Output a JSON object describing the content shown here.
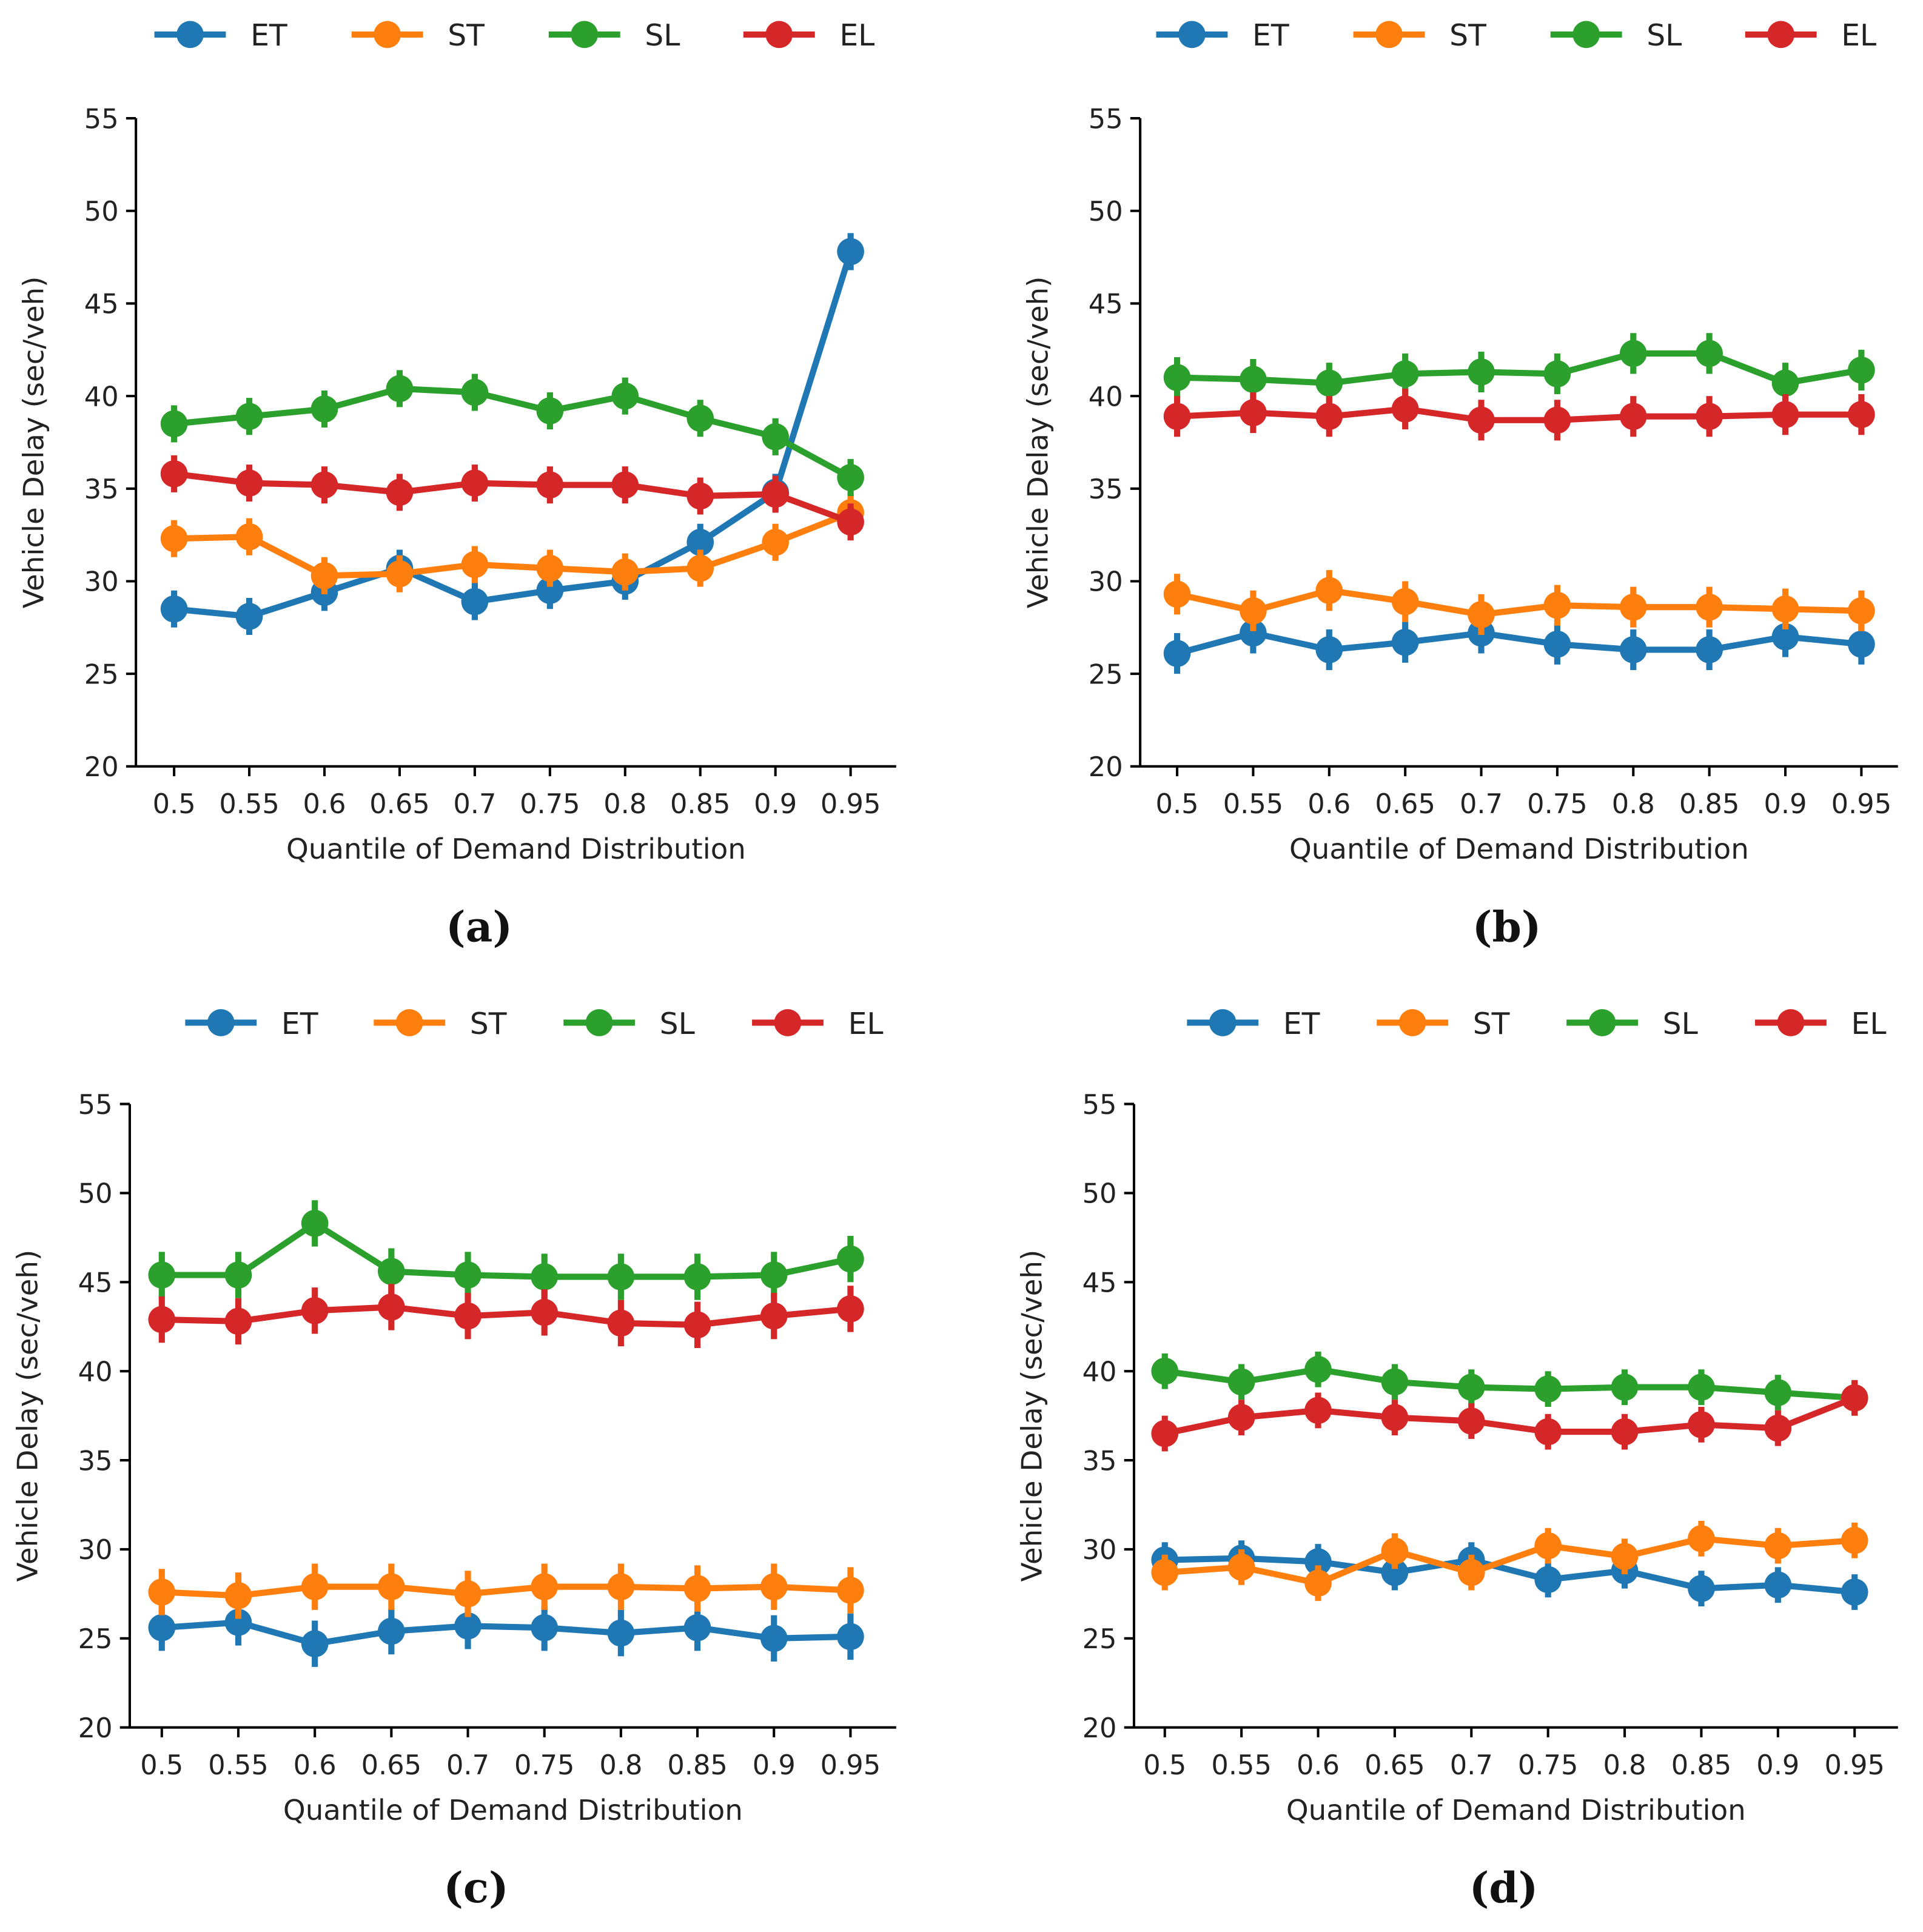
{
  "chart_data": [
    {
      "type": "line",
      "caption": "(a)",
      "xlabel": "Quantile of Demand Distribution",
      "ylabel": "Vehicle Delay (sec/veh)",
      "categories": [
        "0.5",
        "0.55",
        "0.6",
        "0.65",
        "0.7",
        "0.75",
        "0.8",
        "0.85",
        "0.9",
        "0.95"
      ],
      "ylim": [
        20,
        55
      ],
      "yticks": [
        20,
        25,
        30,
        35,
        40,
        45,
        50,
        55
      ],
      "legend": "top",
      "error_bar": 1.0,
      "series": [
        {
          "name": "ET",
          "color": "#1f77b4",
          "values": [
            28.5,
            28.1,
            29.4,
            30.7,
            28.9,
            29.5,
            30.0,
            32.1,
            34.8,
            47.8
          ]
        },
        {
          "name": "ST",
          "color": "#ff7f0e",
          "values": [
            32.3,
            32.4,
            30.3,
            30.4,
            30.9,
            30.7,
            30.5,
            30.7,
            32.1,
            33.7
          ]
        },
        {
          "name": "SL",
          "color": "#2ca02c",
          "values": [
            38.5,
            38.9,
            39.3,
            40.4,
            40.2,
            39.2,
            40.0,
            38.8,
            37.8,
            35.6
          ]
        },
        {
          "name": "EL",
          "color": "#d62728",
          "values": [
            35.8,
            35.3,
            35.2,
            34.8,
            35.3,
            35.2,
            35.2,
            34.6,
            34.7,
            33.2
          ]
        }
      ]
    },
    {
      "type": "line",
      "caption": "(b)",
      "xlabel": "Quantile of Demand Distribution",
      "ylabel": "Vehicle Delay (sec/veh)",
      "categories": [
        "0.5",
        "0.55",
        "0.6",
        "0.65",
        "0.7",
        "0.75",
        "0.8",
        "0.85",
        "0.9",
        "0.95"
      ],
      "ylim": [
        20,
        55
      ],
      "yticks": [
        20,
        25,
        30,
        35,
        40,
        45,
        50,
        55
      ],
      "legend": "top",
      "error_bar": 1.1,
      "series": [
        {
          "name": "ET",
          "color": "#1f77b4",
          "values": [
            26.1,
            27.2,
            26.3,
            26.7,
            27.2,
            26.6,
            26.3,
            26.3,
            27.0,
            26.6
          ]
        },
        {
          "name": "ST",
          "color": "#ff7f0e",
          "values": [
            29.3,
            28.4,
            29.5,
            28.9,
            28.2,
            28.7,
            28.6,
            28.6,
            28.5,
            28.4
          ]
        },
        {
          "name": "SL",
          "color": "#2ca02c",
          "values": [
            41.0,
            40.9,
            40.7,
            41.2,
            41.3,
            41.2,
            42.3,
            42.3,
            40.7,
            41.4
          ]
        },
        {
          "name": "EL",
          "color": "#d62728",
          "values": [
            38.9,
            39.1,
            38.9,
            39.3,
            38.7,
            38.7,
            38.9,
            38.9,
            39.0,
            39.0
          ]
        }
      ]
    },
    {
      "type": "line",
      "caption": "(c)",
      "xlabel": "Quantile of Demand Distribution",
      "ylabel": "Vehicle Delay (sec/veh)",
      "categories": [
        "0.5",
        "0.55",
        "0.6",
        "0.65",
        "0.7",
        "0.75",
        "0.8",
        "0.85",
        "0.9",
        "0.95"
      ],
      "ylim": [
        20,
        55
      ],
      "yticks": [
        20,
        25,
        30,
        35,
        40,
        45,
        50,
        55
      ],
      "legend": "top",
      "error_bar": 1.3,
      "series": [
        {
          "name": "ET",
          "color": "#1f77b4",
          "values": [
            25.6,
            25.9,
            24.7,
            25.4,
            25.7,
            25.6,
            25.3,
            25.6,
            25.0,
            25.1
          ]
        },
        {
          "name": "ST",
          "color": "#ff7f0e",
          "values": [
            27.6,
            27.4,
            27.9,
            27.9,
            27.5,
            27.9,
            27.9,
            27.8,
            27.9,
            27.7
          ]
        },
        {
          "name": "SL",
          "color": "#2ca02c",
          "values": [
            45.4,
            45.4,
            48.3,
            45.6,
            45.4,
            45.3,
            45.3,
            45.3,
            45.4,
            46.3
          ]
        },
        {
          "name": "EL",
          "color": "#d62728",
          "values": [
            42.9,
            42.8,
            43.4,
            43.6,
            43.1,
            43.3,
            42.7,
            42.6,
            43.1,
            43.5
          ]
        }
      ]
    },
    {
      "type": "line",
      "caption": "(d)",
      "xlabel": "Quantile of Demand Distribution",
      "ylabel": "Vehicle Delay (sec/veh)",
      "categories": [
        "0.5",
        "0.55",
        "0.6",
        "0.65",
        "0.7",
        "0.75",
        "0.8",
        "0.85",
        "0.9",
        "0.95"
      ],
      "ylim": [
        20,
        55
      ],
      "yticks": [
        20,
        25,
        30,
        35,
        40,
        45,
        50,
        55
      ],
      "legend": "top",
      "error_bar": 1.0,
      "series": [
        {
          "name": "ET",
          "color": "#1f77b4",
          "values": [
            29.4,
            29.5,
            29.3,
            28.7,
            29.4,
            28.3,
            28.8,
            27.8,
            28.0,
            27.6
          ]
        },
        {
          "name": "ST",
          "color": "#ff7f0e",
          "values": [
            28.7,
            29.0,
            28.1,
            29.9,
            28.7,
            30.2,
            29.6,
            30.6,
            30.2,
            30.5
          ]
        },
        {
          "name": "SL",
          "color": "#2ca02c",
          "values": [
            40.0,
            39.4,
            40.1,
            39.4,
            39.1,
            39.0,
            39.1,
            39.1,
            38.8,
            38.5
          ]
        },
        {
          "name": "EL",
          "color": "#d62728",
          "values": [
            36.5,
            37.4,
            37.8,
            37.4,
            37.2,
            36.6,
            36.6,
            37.0,
            36.8,
            38.5
          ]
        }
      ]
    }
  ]
}
